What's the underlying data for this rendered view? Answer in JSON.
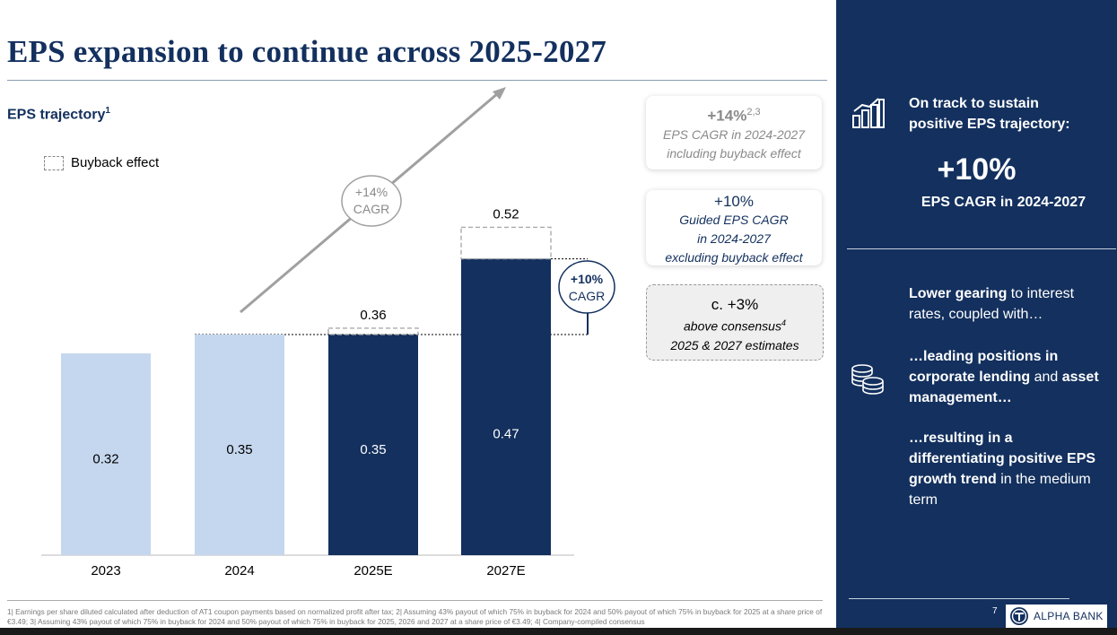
{
  "title": "EPS expansion to continue across 2025-2027",
  "subtitle": {
    "text": "EPS trajectory",
    "sup": "1"
  },
  "legend": {
    "buyback_label": "Buyback effect"
  },
  "chart_data": {
    "type": "bar",
    "title": "EPS trajectory",
    "categories": [
      "2023",
      "2024",
      "2025E",
      "2027E"
    ],
    "series": [
      {
        "name": "EPS",
        "values": [
          0.32,
          0.35,
          0.35,
          0.47
        ]
      },
      {
        "name": "Buyback effect",
        "values": [
          0,
          0,
          0.01,
          0.05
        ]
      }
    ],
    "bar_labels": [
      "0.32",
      "0.35",
      "0.35",
      "0.47"
    ],
    "total_labels": [
      "",
      "",
      "0.36",
      "0.52"
    ],
    "ylim": [
      0,
      0.56
    ],
    "colors": {
      "historical": "#c5d7ee",
      "forecast": "#13305e",
      "arrow": "#a0a0a0"
    },
    "annotations": {
      "cagr_buyback": {
        "line1": "+14%",
        "line2": "CAGR"
      },
      "cagr_guided": {
        "line1": "+10%",
        "line2": "CAGR"
      }
    }
  },
  "callouts": {
    "buyback": {
      "value": "+14%",
      "sup": "2,3",
      "line1": "EPS CAGR in 2024-2027",
      "line2": "including buyback effect"
    },
    "guided": {
      "value": "+10%",
      "line1": "Guided EPS CAGR",
      "line2": "in 2024-2027",
      "line3": "excluding buyback effect"
    },
    "consensus": {
      "value": "c. +3%",
      "line1": "above consensus",
      "sup": "4",
      "line2": "2025 & 2027 estimates"
    }
  },
  "sidebar": {
    "heading_line1": "On track to sustain",
    "heading_line2": "positive EPS trajectory:",
    "big_value": "+10%",
    "big_sub": "EPS CAGR in 2024-2027",
    "p1_bold": "Lower gearing",
    "p1_rest": " to interest rates, coupled with…",
    "p2_bold1": "…leading positions in corporate lending",
    "p2_mid": " and ",
    "p2_bold2": "asset management…",
    "p3_bold": "…resulting in a differentiating positive EPS growth trend",
    "p3_rest": " in the medium term",
    "page_number": "7",
    "bank_name": "ALPHA BANK",
    "icons": [
      "bar-chart-growth-icon",
      "coins-stack-icon"
    ]
  },
  "footnote": "1| Earnings per share diluted calculated after deduction of AT1 coupon payments based on normalized profit after tax; 2| Assuming 43% payout of which 75% in buyback for 2024 and 50% payout of which 75% in buyback for 2025 at a share price of €3.49; 3| Assuming 43% payout of which 75% in buyback for 2024 and 50% payout of which 75% in buyback for 2025, 2026 and 2027 at a share price of €3.49; 4| Company-compiled consensus"
}
